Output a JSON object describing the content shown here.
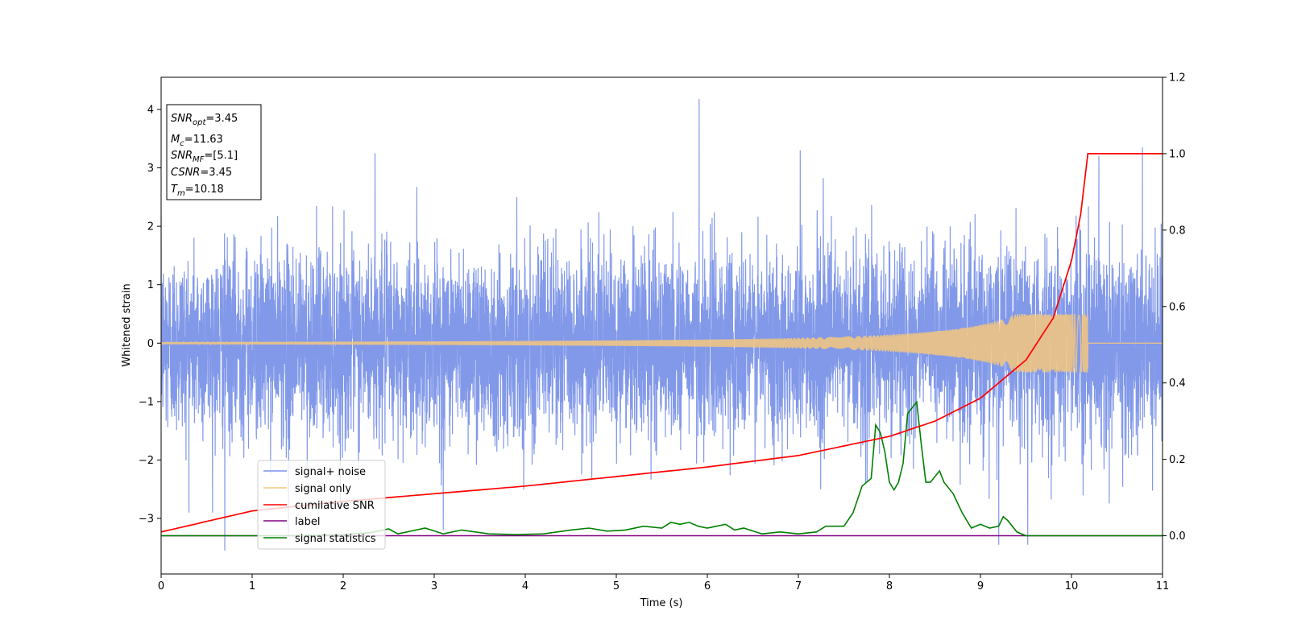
{
  "chart_data": {
    "type": "line",
    "xlabel": "Time (s)",
    "ylabel_left": "Whitened strain",
    "ylabel_right": "",
    "xlim": [
      0,
      11
    ],
    "ylim_left": [
      -3.95,
      4.55
    ],
    "ylim_right": [
      -0.1,
      1.2
    ],
    "xticks": [
      "0",
      "1",
      "2",
      "3",
      "4",
      "5",
      "6",
      "7",
      "8",
      "9",
      "10",
      "11"
    ],
    "yticks_left": [
      "−3",
      "−2",
      "−1",
      "0",
      "1",
      "2",
      "3",
      "4"
    ],
    "yticks_right": [
      "0.0",
      "0.2",
      "0.4",
      "0.6",
      "0.8",
      "1.0",
      "1.2"
    ],
    "grid": false,
    "legend_position": "lower-left",
    "legend": [
      {
        "label": "signal+ noise",
        "color": "#7b94e8"
      },
      {
        "label": "signal only",
        "color": "#f5c77e"
      },
      {
        "label": "cumilative SNR",
        "color": "#ff0000"
      },
      {
        "label": "label",
        "color": "#800080"
      },
      {
        "label": "signal statistics",
        "color": "#008000"
      }
    ],
    "annotation": {
      "snr_opt": {
        "label": "SNR",
        "sub": "opt",
        "value": "=3.45"
      },
      "mc": {
        "label": "M",
        "sub": "c",
        "value": "=11.63"
      },
      "snr_mf": {
        "label": "SNR",
        "sub": "MF",
        "value": "=[5.1]"
      },
      "csnr": {
        "label": "CSNR",
        "sub": "",
        "value": "=3.45"
      },
      "tm": {
        "label": "T",
        "sub": "m",
        "value": "=10.18"
      }
    },
    "series": {
      "noise": {
        "axis": "left",
        "sigma": 0.78,
        "extremes": [
          {
            "x": 0.7,
            "y": -3.55
          },
          {
            "x": 5.91,
            "y": 4.18
          },
          {
            "x": 9.2,
            "y": -3.45
          },
          {
            "x": 9.52,
            "y": -3.45
          },
          {
            "x": 10.78,
            "y": 3.35
          },
          {
            "x": 1.4,
            "y": -3.3
          },
          {
            "x": 3.1,
            "y": -3.2
          },
          {
            "x": 7.02,
            "y": 3.3
          },
          {
            "x": 2.35,
            "y": 3.25
          },
          {
            "x": 10.3,
            "y": 3.2
          }
        ]
      },
      "signal": {
        "axis": "left",
        "t_merger": 10.18,
        "envelope_start": 0.02,
        "envelope_peak": 0.5
      },
      "cumulative_snr": {
        "axis": "right",
        "x": [
          0,
          1,
          2,
          3,
          4,
          5,
          6,
          7,
          8,
          8.5,
          9,
          9.5,
          9.8,
          10,
          10.1,
          10.18,
          10.2,
          11
        ],
        "y": [
          0.01,
          0.065,
          0.09,
          0.11,
          0.13,
          0.155,
          0.18,
          0.21,
          0.26,
          0.3,
          0.36,
          0.46,
          0.57,
          0.72,
          0.84,
          1.0,
          1.0,
          1.0
        ]
      },
      "label": {
        "axis": "right",
        "x": [
          0,
          11
        ],
        "y": [
          0,
          0
        ]
      },
      "signal_statistics": {
        "axis": "right",
        "x": [
          0,
          0.5,
          1.0,
          1.5,
          2.0,
          2.3,
          2.5,
          2.6,
          2.7,
          2.9,
          3.1,
          3.3,
          3.6,
          3.9,
          4.2,
          4.5,
          4.7,
          4.9,
          5.1,
          5.3,
          5.5,
          5.6,
          5.7,
          5.8,
          5.9,
          6.0,
          6.2,
          6.3,
          6.4,
          6.6,
          6.8,
          7.0,
          7.2,
          7.3,
          7.5,
          7.6,
          7.7,
          7.8,
          7.85,
          7.9,
          7.95,
          8.0,
          8.05,
          8.1,
          8.15,
          8.2,
          8.3,
          8.35,
          8.4,
          8.45,
          8.55,
          8.6,
          8.7,
          8.8,
          8.9,
          9.0,
          9.1,
          9.2,
          9.25,
          9.3,
          9.4,
          9.5,
          9.7,
          10.0,
          10.5,
          11.0
        ],
        "y": [
          0.0,
          0.0,
          0.0,
          0.0,
          0.003,
          0.008,
          0.018,
          0.005,
          0.01,
          0.02,
          0.005,
          0.015,
          0.005,
          0.003,
          0.005,
          0.015,
          0.02,
          0.012,
          0.015,
          0.025,
          0.02,
          0.035,
          0.03,
          0.035,
          0.025,
          0.02,
          0.03,
          0.015,
          0.02,
          0.005,
          0.01,
          0.005,
          0.01,
          0.025,
          0.025,
          0.06,
          0.13,
          0.15,
          0.29,
          0.27,
          0.22,
          0.14,
          0.12,
          0.14,
          0.19,
          0.32,
          0.35,
          0.24,
          0.14,
          0.14,
          0.17,
          0.14,
          0.11,
          0.06,
          0.02,
          0.03,
          0.02,
          0.025,
          0.05,
          0.04,
          0.01,
          0.0,
          0.0,
          0.0,
          0.0,
          0.0
        ]
      }
    }
  }
}
